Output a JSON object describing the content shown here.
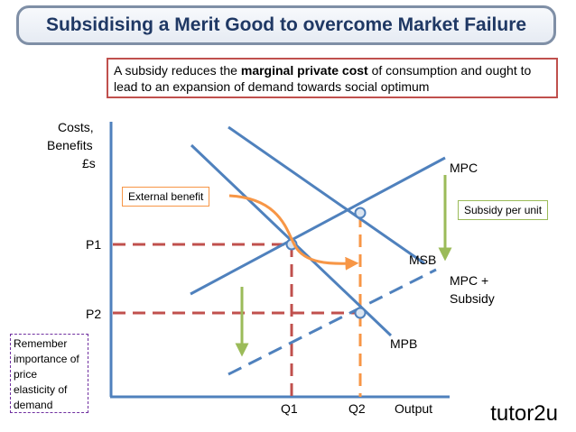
{
  "title": "Subsidising a Merit Good to overcome Market Failure",
  "note": {
    "before": "A subsidy reduces the ",
    "bold": "marginal private cost",
    "after": " of consumption and ought to lead to an expansion of demand towards social optimum"
  },
  "axes": {
    "y_label_1": "Costs,",
    "y_label_2": "Benefits",
    "y_label_3": "£s",
    "x_label": "Output"
  },
  "prices": {
    "p1": "P1",
    "p2": "P2"
  },
  "quantities": {
    "q1": "Q1",
    "q2": "Q2"
  },
  "curves": {
    "mpc": "MPC",
    "msb": "MSB",
    "mpb": "MPB",
    "mpc_subsidy_1": "MPC +",
    "mpc_subsidy_2": "Subsidy"
  },
  "callouts": {
    "external_benefit": "External benefit",
    "subsidy_per_unit": "Subsidy per unit"
  },
  "remember": [
    "Remember",
    "importance of",
    "price",
    "elasticity of",
    "demand"
  ],
  "logo": {
    "text": "tutor",
    "two": "2",
    "u": "u"
  },
  "colors": {
    "curve": "#4f81bd",
    "guide": "#c0504d",
    "q2_guide": "#f79646",
    "arrow_green": "#9bbb59",
    "callout_border": "#f79646",
    "subsidy_border": "#9bbb59",
    "remember_border": "#7030a0"
  }
}
